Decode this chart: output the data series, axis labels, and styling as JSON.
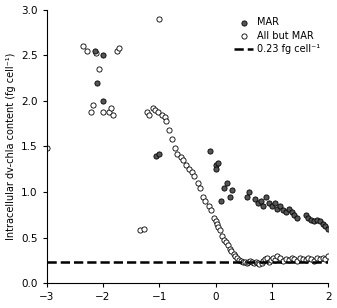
{
  "title": "",
  "xlabel": "",
  "ylabel": "Intracellular dv-chla content (fg cell⁻¹)",
  "xlim": [
    -3,
    2
  ],
  "ylim": [
    0.0,
    3.0
  ],
  "yticks": [
    0.0,
    0.5,
    1.0,
    1.5,
    2.0,
    2.5,
    3.0
  ],
  "xticks": [
    -3,
    -2,
    -1,
    0,
    1,
    2
  ],
  "dashed_line_y": 0.23,
  "dashed_line_label": "0.23 fg cell⁻¹",
  "mar_color": "#555555",
  "other_color": "#ffffff",
  "mar_x": [
    -2.15,
    -2.1,
    -2.0,
    -2.0,
    -1.05,
    -1.0,
    -0.1,
    0.0,
    0.0,
    0.05,
    0.1,
    0.15,
    0.2,
    0.25,
    0.3,
    0.55,
    0.6,
    0.7,
    0.75,
    0.8,
    0.85,
    0.9,
    0.95,
    1.0,
    1.05,
    1.1,
    1.15,
    1.2,
    1.25,
    1.3,
    1.35,
    1.4,
    1.45,
    1.6,
    1.65,
    1.7,
    1.75,
    1.8,
    1.85,
    1.9,
    1.95,
    2.0
  ],
  "mar_y": [
    2.55,
    2.2,
    2.0,
    2.5,
    1.4,
    1.42,
    1.45,
    1.3,
    1.25,
    1.32,
    0.9,
    1.05,
    1.1,
    0.95,
    1.02,
    0.95,
    1.0,
    0.92,
    0.88,
    0.9,
    0.85,
    0.95,
    0.88,
    0.85,
    0.88,
    0.82,
    0.85,
    0.8,
    0.78,
    0.82,
    0.78,
    0.75,
    0.72,
    0.75,
    0.72,
    0.7,
    0.68,
    0.7,
    0.68,
    0.65,
    0.63,
    0.6
  ],
  "other_x": [
    -3.0,
    -2.35,
    -2.28,
    -2.22,
    -2.18,
    -2.12,
    -2.08,
    -2.0,
    -1.9,
    -1.85,
    -1.82,
    -1.75,
    -1.72,
    -1.35,
    -1.28,
    -1.22,
    -1.18,
    -1.12,
    -1.08,
    -1.02,
    -1.0,
    -0.95,
    -0.9,
    -0.88,
    -0.82,
    -0.78,
    -0.72,
    -0.68,
    -0.62,
    -0.58,
    -0.52,
    -0.48,
    -0.42,
    -0.38,
    -0.32,
    -0.28,
    -0.22,
    -0.18,
    -0.12,
    -0.08,
    -0.02,
    0.0,
    0.02,
    0.05,
    0.08,
    0.12,
    0.15,
    0.18,
    0.22,
    0.25,
    0.28,
    0.32,
    0.35,
    0.38,
    0.42,
    0.45,
    0.48,
    0.52,
    0.55,
    0.58,
    0.62,
    0.65,
    0.68,
    0.72,
    0.75,
    0.78,
    0.82,
    0.85,
    0.88,
    0.92,
    0.95,
    0.98,
    1.02,
    1.05,
    1.1,
    1.15,
    1.2,
    1.25,
    1.3,
    1.35,
    1.4,
    1.45,
    1.5,
    1.55,
    1.6,
    1.65,
    1.7,
    1.75,
    1.8,
    1.85,
    1.9,
    1.95,
    2.0
  ],
  "other_y": [
    1.48,
    2.6,
    2.55,
    1.88,
    1.95,
    2.52,
    2.35,
    1.88,
    1.88,
    1.92,
    1.85,
    2.55,
    2.58,
    0.58,
    0.6,
    1.88,
    1.85,
    1.92,
    1.9,
    1.88,
    2.9,
    1.85,
    1.82,
    1.78,
    1.68,
    1.58,
    1.48,
    1.42,
    1.38,
    1.35,
    1.3,
    1.25,
    1.22,
    1.18,
    1.1,
    1.05,
    0.95,
    0.9,
    0.85,
    0.8,
    0.72,
    0.68,
    0.65,
    0.62,
    0.58,
    0.52,
    0.48,
    0.45,
    0.42,
    0.38,
    0.35,
    0.32,
    0.3,
    0.28,
    0.26,
    0.25,
    0.24,
    0.23,
    0.22,
    0.24,
    0.25,
    0.24,
    0.22,
    0.23,
    0.22,
    0.21,
    0.22,
    0.25,
    0.27,
    0.28,
    0.24,
    0.26,
    0.28,
    0.26,
    0.3,
    0.28,
    0.25,
    0.27,
    0.26,
    0.28,
    0.27,
    0.25,
    0.28,
    0.27,
    0.26,
    0.28,
    0.27,
    0.25,
    0.28,
    0.27,
    0.28,
    0.27,
    0.3
  ]
}
